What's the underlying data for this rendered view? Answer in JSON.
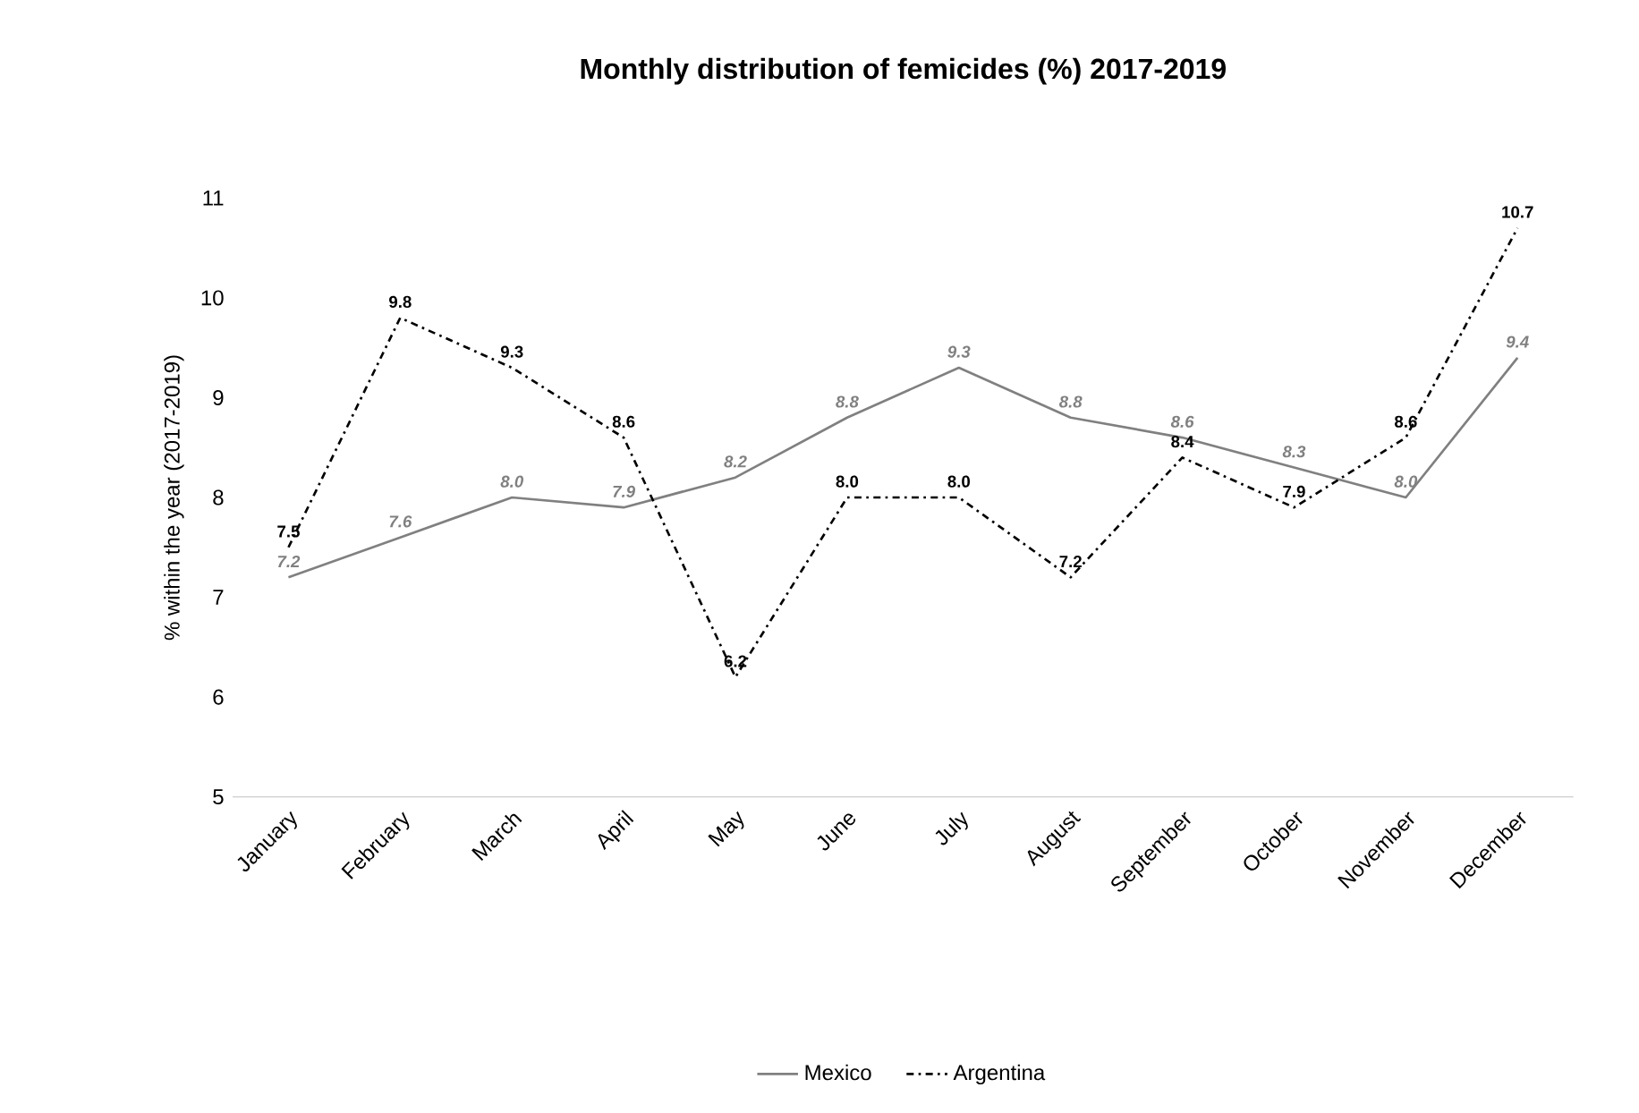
{
  "chart_data": {
    "type": "line",
    "title": "Monthly distribution of femicides (%) 2017-2019",
    "ylabel": "% within the year (2017-2019)",
    "categories": [
      "January",
      "February",
      "March",
      "April",
      "May",
      "June",
      "July",
      "August",
      "September",
      "October",
      "November",
      "December"
    ],
    "series": [
      {
        "name": "Mexico",
        "color": "#808080",
        "line_style": "solid",
        "values": [
          7.2,
          7.6,
          8.0,
          7.9,
          8.2,
          8.8,
          9.3,
          8.8,
          8.6,
          8.3,
          8.0,
          9.4
        ],
        "value_labels": [
          "7.2",
          "7.6",
          "8.0",
          "7.9",
          "8.2",
          "8.8",
          "9.3",
          "8.8",
          "8.6",
          "8.3",
          "8.0",
          "9.4"
        ]
      },
      {
        "name": "Argentina",
        "color": "#000000",
        "line_style": "dashdot",
        "values": [
          7.5,
          9.8,
          9.3,
          8.6,
          6.2,
          8.0,
          8.0,
          7.2,
          8.4,
          7.9,
          8.6,
          10.7
        ],
        "value_labels": [
          "7.5",
          "9.8",
          "9.3",
          "8.6",
          "6.2",
          "8.0",
          "8.0",
          "7.2",
          "8.4",
          "7.9",
          "8.6",
          "10.7"
        ]
      }
    ],
    "ylim": [
      5,
      11
    ],
    "yticks": [
      5,
      6,
      7,
      8,
      9,
      10,
      11
    ],
    "legend": "bottom",
    "grid": false,
    "marker": "none"
  }
}
